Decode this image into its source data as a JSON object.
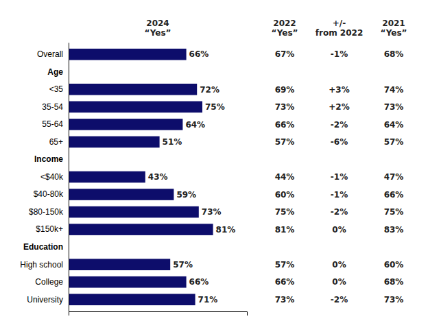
{
  "chart_data": {
    "type": "bar",
    "orientation": "horizontal",
    "xlabel": "2024\n“Yes”",
    "categories": [
      "Overall",
      "Age",
      "<35",
      "35-54",
      "55-64",
      "65+",
      "Income",
      "<$40k",
      "$40-80k",
      "$80-150k",
      "$150k+",
      "Education",
      "High school",
      "College",
      "University"
    ],
    "values": [
      66,
      null,
      72,
      75,
      64,
      51,
      null,
      43,
      59,
      73,
      81,
      null,
      57,
      66,
      71
    ],
    "value_labels": [
      "66%",
      null,
      "72%",
      "75%",
      "64%",
      "51%",
      null,
      "43%",
      "59%",
      "73%",
      "81%",
      null,
      "57%",
      "66%",
      "71%"
    ],
    "data_labels": true,
    "color": "#0d0d6b",
    "xlim": [
      0,
      100
    ],
    "tick_labels": "y",
    "table": [
      {
        "header": "2022\n“Yes”",
        "cells": [
          "67%",
          null,
          "69%",
          "73%",
          "66%",
          "57%",
          null,
          "44%",
          "60%",
          "75%",
          "81%",
          null,
          "57%",
          "66%",
          "73%"
        ]
      },
      {
        "header": "+/-\nfrom 2022",
        "cells": [
          "-1%",
          null,
          "+3%",
          "+2%",
          "-2%",
          "-6%",
          null,
          "-1%",
          "-1%",
          "-2%",
          "0%",
          null,
          "0%",
          "0%",
          "-2%"
        ]
      },
      {
        "header": "2021\n“Yes”",
        "cells": [
          "68%",
          null,
          "74%",
          "73%",
          "64%",
          "57%",
          null,
          "47%",
          "66%",
          "75%",
          "83%",
          null,
          "60%",
          "68%",
          "73%"
        ]
      }
    ]
  }
}
